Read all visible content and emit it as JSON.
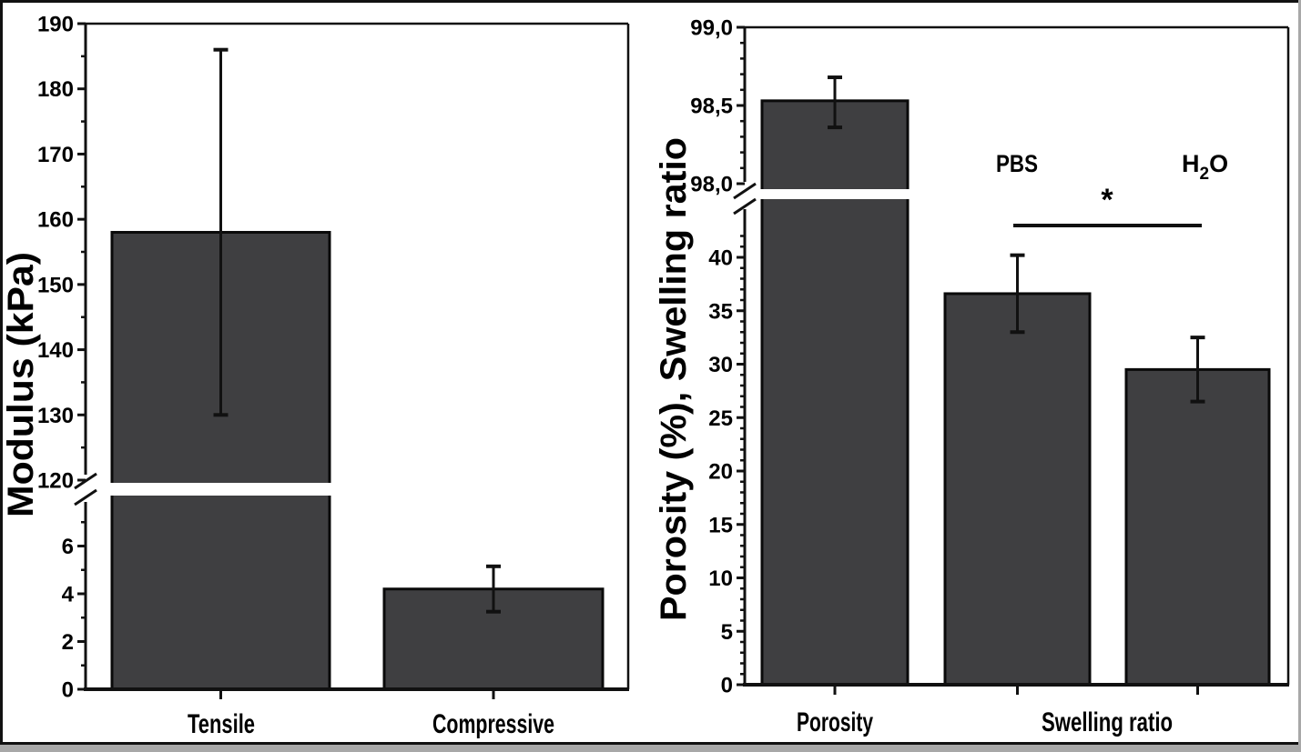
{
  "figure": {
    "kind": "scientific-bar-figure",
    "background_color": "#ffffff",
    "bar_fill_color": "#3f3f41",
    "bar_stroke_color": "#0a0a0a",
    "frame_color": "#111111",
    "frame_shadow_color": "#a8a8a8"
  },
  "chart_data": [
    {
      "type": "bar",
      "title": "",
      "ylabel": "Modulus (kPa)",
      "categories": [
        "Tensile",
        "Compressive"
      ],
      "values": [
        158,
        4.2
      ],
      "error_plus": [
        28,
        0.95
      ],
      "error_minus": [
        28,
        0.95
      ],
      "x_tick_labels": [
        "Tensile",
        "Compressive"
      ],
      "axis_break": {
        "lower_segment": [
          0,
          8
        ],
        "upper_segment": [
          120,
          190
        ]
      },
      "y_axis": {
        "upper_major_ticks": [
          {
            "v": 190,
            "label": "190"
          },
          {
            "v": 180,
            "label": "180"
          },
          {
            "v": 170,
            "label": "170"
          },
          {
            "v": 160,
            "label": "160"
          },
          {
            "v": 150,
            "label": "150"
          },
          {
            "v": 140,
            "label": "140"
          },
          {
            "v": 130,
            "label": "130"
          },
          {
            "v": 120,
            "label": "120"
          }
        ],
        "upper_minor_ticks": [
          185,
          175,
          165,
          155,
          145,
          135,
          125
        ],
        "lower_major_ticks": [
          {
            "v": 6,
            "label": "6"
          },
          {
            "v": 4,
            "label": "4"
          },
          {
            "v": 2,
            "label": "2"
          },
          {
            "v": 0,
            "label": "0"
          }
        ],
        "lower_minor_ticks": [
          7,
          5,
          3,
          1
        ]
      },
      "grid": false,
      "legend": null
    },
    {
      "type": "bar",
      "title": "",
      "ylabel": "Porosity (%), Swelling ratio",
      "categories": [
        "Porosity",
        "Swelling ratio (PBS)",
        "Swelling ratio (H2O)"
      ],
      "values": [
        98.53,
        36.6,
        29.5
      ],
      "error_plus": [
        0.15,
        3.6,
        3.0
      ],
      "error_minus": [
        0.17,
        3.6,
        3.0
      ],
      "x_tick_labels": [
        "Porosity",
        "Swelling ratio"
      ],
      "axis_break": {
        "lower_segment": [
          0,
          43
        ],
        "upper_segment": [
          98.0,
          99.0
        ]
      },
      "y_axis": {
        "upper_major_ticks": [
          {
            "v": 99.0,
            "label": "99,0"
          },
          {
            "v": 98.5,
            "label": "98,5"
          },
          {
            "v": 98.0,
            "label": "98,0"
          }
        ],
        "upper_minor_ticks": [
          98.9,
          98.8,
          98.7,
          98.6,
          98.4,
          98.3,
          98.2,
          98.1
        ],
        "lower_major_ticks": [
          {
            "v": 40,
            "label": "40"
          },
          {
            "v": 35,
            "label": "35"
          },
          {
            "v": 30,
            "label": "30"
          },
          {
            "v": 25,
            "label": "25"
          },
          {
            "v": 20,
            "label": "20"
          },
          {
            "v": 15,
            "label": "15"
          },
          {
            "v": 10,
            "label": "10"
          },
          {
            "v": 5,
            "label": "5"
          },
          {
            "v": 0,
            "label": "0"
          }
        ],
        "lower_minor_ticks": [
          42,
          41,
          39,
          38,
          37,
          36,
          34,
          33,
          32,
          31,
          29,
          28,
          27,
          26,
          24,
          23,
          22,
          21,
          19,
          18,
          17,
          16,
          14,
          13,
          12,
          11,
          9,
          8,
          7,
          6,
          4,
          3,
          2,
          1
        ]
      },
      "annotations": {
        "pbs_label": "PBS",
        "h2o_label": {
          "pre": "H",
          "sub": "2",
          "post": "O"
        },
        "significance_symbol": "*",
        "significance_between": [
          "PBS",
          "H2O"
        ]
      },
      "grid": false,
      "legend": null
    }
  ]
}
